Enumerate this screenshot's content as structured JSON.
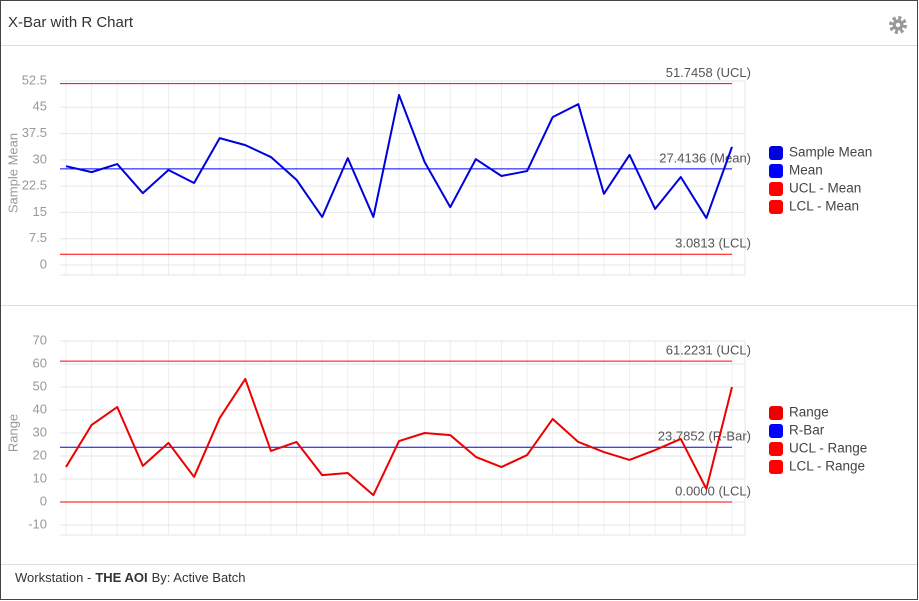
{
  "header": {
    "title": "X-Bar with R Chart"
  },
  "footer": {
    "prefix": "Workstation -",
    "name": "THE AOI",
    "suffix": "By: Active Batch"
  },
  "chart_data": [
    {
      "type": "line",
      "y_label": "Sample Mean",
      "ylim": [
        0,
        52.5
      ],
      "yticks": [
        0,
        7.5,
        15,
        22.5,
        30,
        37.5,
        45,
        52.5
      ],
      "grid": true,
      "series": [
        {
          "name": "Sample Mean",
          "color": "#0000dd",
          "values": [
            28.2,
            26.5,
            28.8,
            20.5,
            27.1,
            23.4,
            36.2,
            34.2,
            30.8,
            24.3,
            13.7,
            30.5,
            13.7,
            48.5,
            29.4,
            16.5,
            30.2,
            25.4,
            26.8,
            42.2,
            45.9,
            20.3,
            31.4,
            16.0,
            25.1,
            13.4,
            33.7
          ]
        },
        {
          "name": "Mean",
          "color": "#0000ff",
          "value": 27.4136,
          "label": "27.4136 (Mean)"
        },
        {
          "name": "UCL - Mean",
          "color": "#ff0000",
          "value": 51.7458,
          "label": "51.7458 (UCL)"
        },
        {
          "name": "LCL - Mean",
          "color": "#ff0000",
          "value": 3.0813,
          "label": "3.0813 (LCL)"
        }
      ]
    },
    {
      "type": "line",
      "y_label": "Range",
      "ylim": [
        -10,
        70
      ],
      "yticks": [
        -10,
        0,
        10,
        20,
        30,
        40,
        50,
        60,
        70
      ],
      "grid": true,
      "series": [
        {
          "name": "Range",
          "color": "#ee0000",
          "values": [
            15.2,
            33.5,
            41.3,
            15.7,
            25.7,
            10.9,
            36.5,
            53.5,
            22.2,
            26.1,
            11.7,
            12.6,
            3.0,
            26.5,
            30.0,
            29.1,
            19.6,
            15.2,
            20.4,
            36.1,
            26.1,
            21.7,
            18.3,
            22.6,
            27.4,
            5.7,
            50.0
          ]
        },
        {
          "name": "R-Bar",
          "color": "#0000ff",
          "value": 23.7852,
          "label": "23.7852 (R-Bar)"
        },
        {
          "name": "UCL - Range",
          "color": "#ff0000",
          "value": 61.2231,
          "label": "61.2231 (UCL)"
        },
        {
          "name": "LCL - Range",
          "color": "#ff0000",
          "value": 0,
          "label": "0.0000 (LCL)"
        }
      ]
    }
  ]
}
